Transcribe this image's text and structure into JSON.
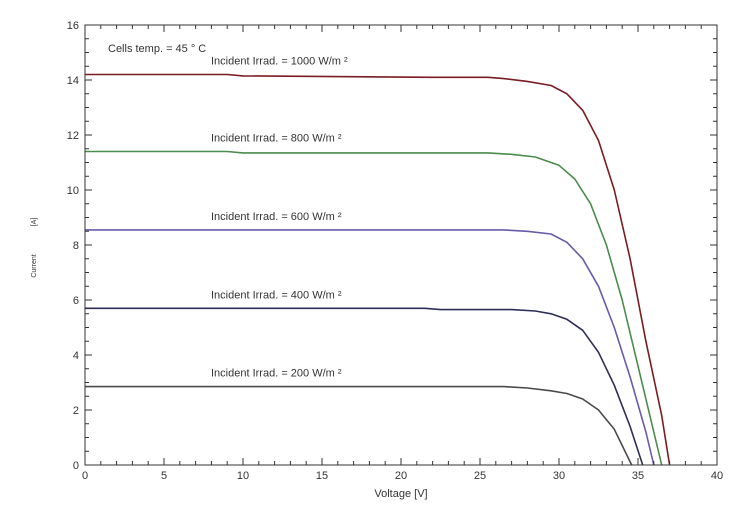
{
  "chart_data": {
    "type": "line",
    "xlabel": "Voltage  [V]",
    "ylabel_name": "Current",
    "ylabel_unit": "[A]",
    "xlim": [
      0,
      40
    ],
    "ylim": [
      0,
      16
    ],
    "xticks": [
      0,
      5,
      10,
      15,
      20,
      25,
      30,
      35,
      40
    ],
    "yticks": [
      0,
      2,
      4,
      6,
      8,
      10,
      12,
      14,
      16
    ],
    "grid": false,
    "annotation": "Cells temp. = 45  ° C",
    "series": [
      {
        "name": "Incident Irrad. = 1000 W/m ²",
        "color": "#7a1c22",
        "x": [
          0,
          9,
          10,
          22,
          25.5,
          26.5,
          28,
          29.5,
          30.5,
          31.5,
          32.5,
          33.5,
          34.5,
          35.5,
          36.5,
          37.0
        ],
        "y": [
          14.2,
          14.2,
          14.15,
          14.1,
          14.1,
          14.05,
          13.95,
          13.8,
          13.5,
          12.9,
          11.8,
          10.0,
          7.5,
          4.5,
          1.8,
          0
        ]
      },
      {
        "name": "Incident Irrad. = 800 W/m ²",
        "color": "#4a8c4a",
        "x": [
          0,
          9,
          10,
          25.5,
          27,
          28.5,
          30,
          31,
          32,
          33,
          34,
          35,
          36,
          36.5
        ],
        "y": [
          11.4,
          11.4,
          11.35,
          11.35,
          11.3,
          11.2,
          10.9,
          10.4,
          9.5,
          8.0,
          6.0,
          3.6,
          1.2,
          0
        ]
      },
      {
        "name": "Incident Irrad. = 600 W/m ²",
        "color": "#6a5aaa",
        "x": [
          0,
          26.5,
          28,
          29.5,
          30.5,
          31.5,
          32.5,
          33.5,
          34.5,
          35.5,
          36.0
        ],
        "y": [
          8.55,
          8.55,
          8.5,
          8.4,
          8.1,
          7.5,
          6.5,
          5.0,
          3.2,
          1.2,
          0
        ]
      },
      {
        "name": "Incident Irrad. = 400 W/m ²",
        "color": "#2e2e58",
        "x": [
          0,
          21.5,
          22.5,
          27,
          28.5,
          29.5,
          30.5,
          31.5,
          32.5,
          33.5,
          34.5,
          35.3
        ],
        "y": [
          5.7,
          5.7,
          5.65,
          5.65,
          5.6,
          5.5,
          5.3,
          4.9,
          4.1,
          2.9,
          1.4,
          0
        ]
      },
      {
        "name": "Incident Irrad. = 200 W/m ²",
        "color": "#4a4a4a",
        "x": [
          0,
          26.5,
          28,
          29.5,
          30.5,
          31.5,
          32.5,
          33.5,
          34.6
        ],
        "y": [
          2.85,
          2.85,
          2.8,
          2.7,
          2.6,
          2.4,
          2.0,
          1.3,
          0
        ]
      }
    ]
  }
}
